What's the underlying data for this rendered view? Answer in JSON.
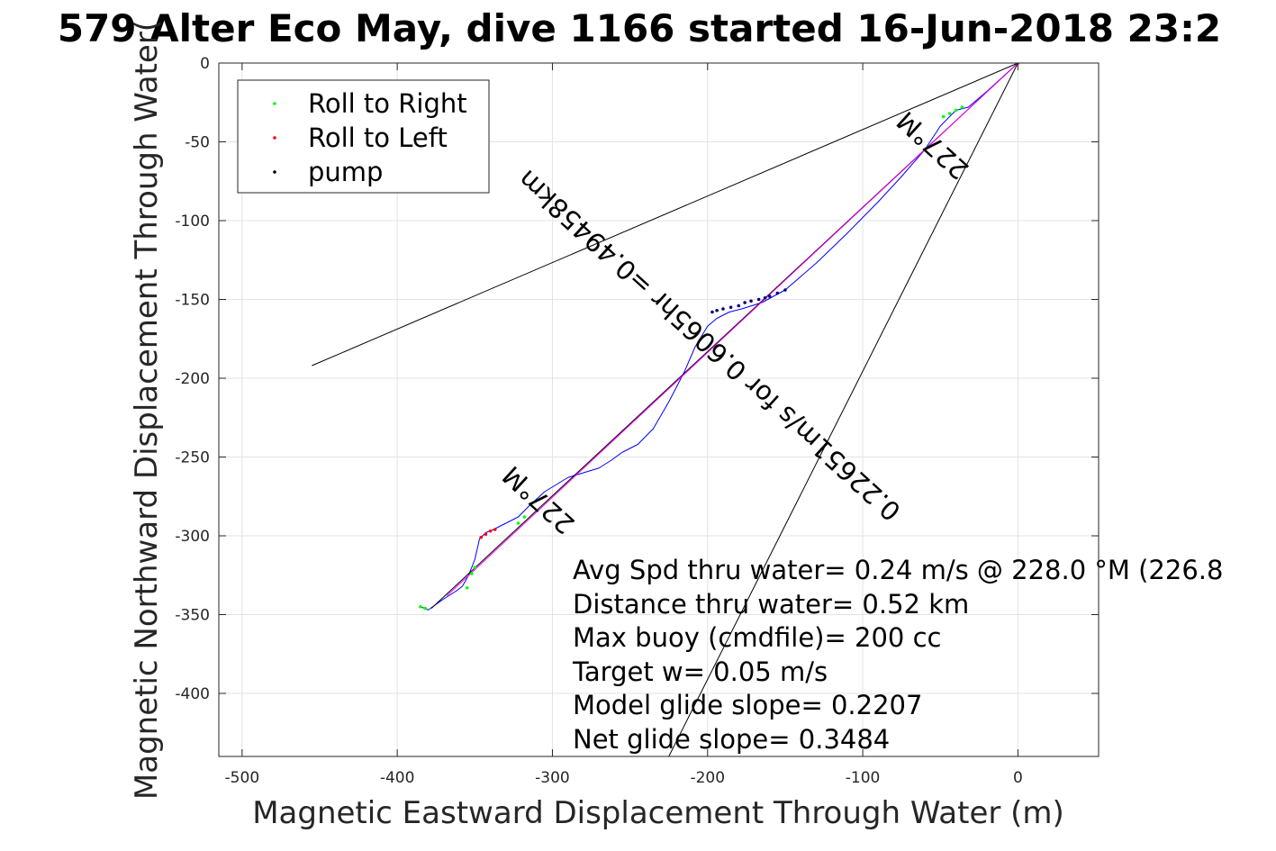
{
  "chart_data": {
    "type": "line",
    "title": "579 Alter Eco May, dive 1166 started 16-Jun-2018 23:2",
    "xlabel": "Magnetic Eastward Displacement Through Water (m)",
    "ylabel": "Magnetic Northward Displacement Through Water(",
    "xlim": [
      -515,
      52
    ],
    "ylim": [
      -440,
      0
    ],
    "xticks": [
      -500,
      -400,
      -300,
      -200,
      -100,
      0
    ],
    "yticks": [
      0,
      -50,
      -100,
      -150,
      -200,
      -250,
      -300,
      -350,
      -400
    ],
    "xtick_labels": [
      "-500",
      "-400",
      "-300",
      "-200",
      "-100",
      "0"
    ],
    "ytick_labels": [
      "0",
      "-50",
      "-100",
      "-150",
      "-200",
      "-250",
      "-300",
      "-350",
      "-400"
    ],
    "grid": true,
    "legend": {
      "placement": "top-left",
      "entries": [
        {
          "label": "Roll to Right",
          "color": "#00ff00"
        },
        {
          "label": "Roll to Left",
          "color": "#ff0000"
        },
        {
          "label": "pump",
          "color": "#000000"
        }
      ]
    },
    "series": [
      {
        "kind": "track",
        "color": "#0000ff",
        "x": [
          0,
          -20,
          -32,
          -40,
          -50,
          -60,
          -75,
          -90,
          -110,
          -130,
          -150,
          -165,
          -178,
          -186,
          -194,
          -200,
          -208,
          -215,
          -225,
          -235,
          -245,
          -255,
          -262,
          -270,
          -280,
          -290,
          -305,
          -315,
          -322,
          -330,
          -338,
          -343,
          -347,
          -350,
          -354,
          -358,
          -362,
          -370,
          -380,
          -385
        ],
        "y": [
          0,
          -18,
          -28,
          -30,
          -40,
          -55,
          -72,
          -88,
          -108,
          -127,
          -144,
          -152,
          -156,
          -158,
          -162,
          -167,
          -180,
          -196,
          -215,
          -232,
          -242,
          -247,
          -252,
          -257,
          -260,
          -263,
          -272,
          -281,
          -288,
          -292,
          -296,
          -298,
          -302,
          -315,
          -325,
          -332,
          -335,
          -340,
          -347,
          -345
        ]
      },
      {
        "kind": "heading_line",
        "color": "#000000",
        "x": [
          0,
          -378
        ],
        "y": [
          0,
          -346
        ]
      },
      {
        "kind": "heading_line",
        "color": "#ff00ff",
        "x": [
          0,
          -368
        ],
        "y": [
          0,
          -338
        ]
      },
      {
        "kind": "envelope",
        "color": "#000000",
        "x": [
          0,
          -455
        ],
        "y": [
          0,
          -192
        ]
      },
      {
        "kind": "envelope",
        "color": "#000000",
        "x": [
          0,
          -225
        ],
        "y": [
          0,
          -440
        ]
      },
      {
        "name": "Roll to Right",
        "kind": "markers",
        "color": "#00ff00",
        "x": [
          -36,
          -40,
          -44,
          -48,
          -318,
          -322,
          -350,
          -352,
          -355,
          -382,
          -385
        ],
        "y": [
          -28,
          -30,
          -32,
          -34,
          -288,
          -292,
          -320,
          -324,
          -333,
          -346,
          -345
        ]
      },
      {
        "name": "Roll to Left",
        "kind": "markers",
        "color": "#ff0000",
        "x": [
          0,
          -337,
          -340,
          -343,
          -346
        ],
        "y": [
          0,
          -296,
          -297,
          -299,
          -301
        ]
      },
      {
        "name": "pump",
        "kind": "markers",
        "color": "#000080",
        "x": [
          -150,
          -155,
          -160,
          -163,
          -167,
          -172,
          -176,
          -180,
          -185,
          -190,
          -194,
          -197
        ],
        "y": [
          -144,
          -146,
          -148,
          -149,
          -150,
          -151,
          -152,
          -154,
          -155,
          -156,
          -157,
          -158
        ]
      }
    ],
    "annotations": [
      {
        "text": "0.22651m/s for 0.6065hr =0.49458km",
        "x": -195,
        "y": -175,
        "rotation": 42.3
      },
      {
        "text": "227°M",
        "x": -51,
        "y": -48,
        "rotation": 42.3
      },
      {
        "text": "227°M",
        "x": -305,
        "y": -273,
        "rotation": 42.3
      }
    ],
    "stats": [
      "Avg Spd thru water=  0.24 m/s @ 228.0 °M (226.8",
      "Distance thru water=  0.52 km",
      "Max buoy (cmdfile)= 200 cc",
      "Target w= 0.05 m/s",
      "Model glide slope= 0.2207",
      "Net glide slope= 0.3484"
    ]
  }
}
